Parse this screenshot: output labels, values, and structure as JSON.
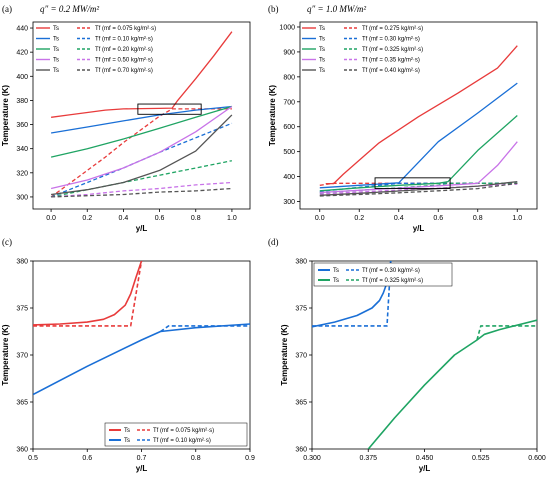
{
  "chart_data": [
    {
      "type": "line",
      "panel_label": "(a)",
      "title": "q″ = 0.2 MW/m²",
      "xlabel": "y/L",
      "ylabel": "Temperature (K)",
      "xlim": [
        -0.1,
        1.1
      ],
      "ylim": [
        290,
        445
      ],
      "xticks": [
        0.0,
        0.2,
        0.4,
        0.6,
        0.8,
        1.0
      ],
      "xtick_labels": [
        "0.0",
        "0.2",
        "0.4",
        "0.6",
        "0.8",
        "1.0"
      ],
      "yticks": [
        300,
        320,
        340,
        360,
        380,
        400,
        420,
        440
      ],
      "ytick_labels": [
        "300",
        "320",
        "340",
        "360",
        "380",
        "400",
        "420",
        "440"
      ],
      "legend_position": "top-left",
      "series": [
        {
          "name": "Ts",
          "style": "solid",
          "color": "#e83b3b",
          "x": [
            0,
            0.1,
            0.2,
            0.3,
            0.4,
            0.5,
            0.6,
            0.67,
            0.7,
            0.8,
            0.9,
            1.0
          ],
          "y": [
            366,
            368,
            370,
            372,
            373,
            373.2,
            373.4,
            373.6,
            380,
            398,
            417,
            437
          ]
        },
        {
          "name": "Tf (mf = 0.075 kg/m²·s)",
          "style": "dashed",
          "color": "#e83b3b",
          "x": [
            0,
            0.1,
            0.2,
            0.3,
            0.4,
            0.5,
            0.6,
            0.67,
            1.0
          ],
          "y": [
            300,
            311,
            322,
            333,
            345,
            356,
            367,
            373,
            373
          ]
        },
        {
          "name": "Ts",
          "style": "solid",
          "color": "#1a6fd6",
          "x": [
            0,
            0.2,
            0.4,
            0.6,
            0.8,
            1.0
          ],
          "y": [
            353,
            358,
            363,
            368,
            372,
            375
          ]
        },
        {
          "name": "Tf (mf = 0.10 kg/m²·s)",
          "style": "dashed",
          "color": "#1a6fd6",
          "x": [
            0,
            0.2,
            0.4,
            0.6,
            0.8,
            1.0
          ],
          "y": [
            300,
            312,
            324,
            337,
            349,
            361
          ]
        },
        {
          "name": "Ts",
          "style": "solid",
          "color": "#1fa463",
          "x": [
            0,
            0.2,
            0.4,
            0.6,
            0.8,
            1.0
          ],
          "y": [
            333,
            340,
            348,
            357,
            366,
            375
          ]
        },
        {
          "name": "Tf (mf = 0.20 kg/m²·s)",
          "style": "dashed",
          "color": "#1fa463",
          "x": [
            0,
            0.2,
            0.4,
            0.6,
            0.8,
            1.0
          ],
          "y": [
            300,
            306,
            312,
            318,
            324,
            330
          ]
        },
        {
          "name": "Ts",
          "style": "solid",
          "color": "#c873e8",
          "x": [
            0,
            0.2,
            0.4,
            0.6,
            0.8,
            1.0
          ],
          "y": [
            307,
            314,
            324,
            337,
            354,
            375
          ]
        },
        {
          "name": "Tf (mf = 0.50 kg/m²·s)",
          "style": "dashed",
          "color": "#c873e8",
          "x": [
            0,
            0.2,
            0.4,
            0.6,
            0.8,
            1.0
          ],
          "y": [
            300,
            302,
            305,
            307,
            310,
            312
          ]
        },
        {
          "name": "Ts",
          "style": "solid",
          "color": "#555555",
          "x": [
            0,
            0.2,
            0.4,
            0.6,
            0.8,
            1.0
          ],
          "y": [
            302,
            306,
            312,
            322,
            338,
            368
          ]
        },
        {
          "name": "Tf (mf = 0.70 kg/m²·s)",
          "style": "dashed",
          "color": "#555555",
          "x": [
            0,
            0.2,
            0.4,
            0.6,
            0.8,
            1.0
          ],
          "y": [
            300,
            301,
            302,
            304,
            305,
            307
          ]
        }
      ],
      "zoom_box": {
        "x": [
          0.48,
          0.83
        ],
        "y": [
          368.5,
          377
        ]
      }
    },
    {
      "type": "line",
      "panel_label": "(b)",
      "title": "q″ = 1.0 MW/m²",
      "xlabel": "y/L",
      "ylabel": "Temperature (K)",
      "xlim": [
        -0.1,
        1.1
      ],
      "ylim": [
        270,
        1020
      ],
      "xticks": [
        0.0,
        0.2,
        0.4,
        0.6,
        0.8,
        1.0
      ],
      "xtick_labels": [
        "0.0",
        "0.2",
        "0.4",
        "0.6",
        "0.8",
        "1.0"
      ],
      "yticks": [
        300,
        400,
        500,
        600,
        700,
        800,
        900,
        1000
      ],
      "ytick_labels": [
        "300",
        "400",
        "500",
        "600",
        "700",
        "800",
        "900",
        "1000"
      ],
      "legend_position": "top-left",
      "series": [
        {
          "name": "Ts",
          "style": "solid",
          "color": "#e83b3b",
          "x": [
            0.03,
            0.07,
            0.12,
            0.3,
            0.5,
            0.7,
            0.9,
            1.0
          ],
          "y": [
            372,
            372,
            410,
            535,
            640,
            735,
            835,
            925
          ]
        },
        {
          "name": "Tf (mf = 0.275 kg/m²·s)",
          "style": "dashed",
          "color": "#e83b3b",
          "x": [
            0.0,
            0.07,
            1.0
          ],
          "y": [
            365,
            373,
            373
          ]
        },
        {
          "name": "Ts",
          "style": "solid",
          "color": "#1a6fd6",
          "x": [
            0,
            0.2,
            0.4,
            0.6,
            0.8,
            1.0
          ],
          "y": [
            355,
            365,
            375,
            540,
            655,
            775
          ]
        },
        {
          "name": "Tf (mf = 0.30 kg/m²·s)",
          "style": "dashed",
          "color": "#1a6fd6",
          "x": [
            0,
            0.2,
            0.39,
            0.4,
            1.0
          ],
          "y": [
            340,
            357,
            372,
            373,
            373
          ]
        },
        {
          "name": "Ts",
          "style": "solid",
          "color": "#1fa463",
          "x": [
            0,
            0.2,
            0.4,
            0.6,
            0.65,
            0.8,
            1.0
          ],
          "y": [
            343,
            355,
            365,
            373,
            380,
            505,
            645
          ]
        },
        {
          "name": "Tf (mf = 0.325 kg/m²·s)",
          "style": "dashed",
          "color": "#1fa463",
          "x": [
            0,
            0.2,
            0.4,
            0.6,
            0.65,
            1.0
          ],
          "y": [
            335,
            345,
            355,
            366,
            373,
            373
          ]
        },
        {
          "name": "Ts",
          "style": "solid",
          "color": "#c873e8",
          "x": [
            0,
            0.2,
            0.4,
            0.6,
            0.8,
            0.9,
            1.0
          ],
          "y": [
            336,
            345,
            354,
            363,
            373,
            445,
            540
          ]
        },
        {
          "name": "Tf (mf = 0.35 kg/m²·s)",
          "style": "dashed",
          "color": "#c873e8",
          "x": [
            0,
            0.2,
            0.4,
            0.6,
            0.8,
            1.0
          ],
          "y": [
            330,
            338,
            346,
            354,
            362,
            370
          ]
        },
        {
          "name": "Ts",
          "style": "solid",
          "color": "#555555",
          "x": [
            0,
            0.2,
            0.4,
            0.6,
            0.8,
            1.0
          ],
          "y": [
            325,
            333,
            342,
            352,
            362,
            380
          ]
        },
        {
          "name": "Tf (mf = 0.40 kg/m²·s)",
          "style": "dashed",
          "color": "#555555",
          "x": [
            0,
            0.2,
            0.4,
            0.6,
            0.8,
            1.0
          ],
          "y": [
            322,
            328,
            335,
            343,
            352,
            373
          ]
        }
      ],
      "zoom_box": {
        "x": [
          0.28,
          0.66
        ],
        "y": [
          352,
          395
        ]
      }
    },
    {
      "type": "line",
      "panel_label": "(c)",
      "title": "",
      "xlabel": "y/L",
      "ylabel": "Temperature (K)",
      "xlim": [
        0.5,
        0.9
      ],
      "ylim": [
        360,
        380
      ],
      "xticks": [
        0.5,
        0.6,
        0.7,
        0.8,
        0.9
      ],
      "xtick_labels": [
        "0.5",
        "0.6",
        "0.7",
        "0.8",
        "0.9"
      ],
      "yticks": [
        360,
        365,
        370,
        375,
        380
      ],
      "ytick_labels": [
        "360",
        "365",
        "370",
        "375",
        "380"
      ],
      "legend_position": "bottom-right",
      "series": [
        {
          "name": "Ts",
          "style": "solid",
          "color": "#e83b3b",
          "x": [
            0.5,
            0.55,
            0.6,
            0.63,
            0.65,
            0.67,
            0.68,
            0.69,
            0.7
          ],
          "y": [
            373.2,
            373.3,
            373.5,
            373.8,
            374.3,
            375.3,
            376.5,
            378.3,
            380
          ]
        },
        {
          "name": "Tf (mf = 0.075 kg/m²·s)",
          "style": "dashed",
          "color": "#e83b3b",
          "x": [
            0.5,
            0.68,
            0.7
          ],
          "y": [
            373.1,
            373.1,
            380
          ]
        },
        {
          "name": "Ts",
          "style": "solid",
          "color": "#1a6fd6",
          "x": [
            0.5,
            0.6,
            0.7,
            0.735,
            0.8,
            0.9
          ],
          "y": [
            365.8,
            368.8,
            371.6,
            372.5,
            372.9,
            373.3
          ]
        },
        {
          "name": "Tf (mf = 0.10 kg/m²·s)",
          "style": "dashed",
          "color": "#1a6fd6",
          "x": [
            0.735,
            0.75,
            0.9
          ],
          "y": [
            372.5,
            373.1,
            373.1
          ]
        }
      ]
    },
    {
      "type": "line",
      "panel_label": "(d)",
      "title": "",
      "xlabel": "y/L",
      "ylabel": "Temperature (K)",
      "xlim": [
        0.3,
        0.6
      ],
      "ylim": [
        360,
        380
      ],
      "xticks": [
        0.3,
        0.375,
        0.45,
        0.525,
        0.6
      ],
      "xtick_labels": [
        "0.300",
        "0.375",
        "0.450",
        "0.525",
        "0.600"
      ],
      "yticks": [
        360,
        365,
        370,
        375,
        380
      ],
      "ytick_labels": [
        "360",
        "365",
        "370",
        "375",
        "380"
      ],
      "legend_position": "top-left",
      "series": [
        {
          "name": "Ts",
          "style": "solid",
          "color": "#1a6fd6",
          "x": [
            0.3,
            0.33,
            0.36,
            0.38,
            0.39,
            0.395,
            0.4,
            0.405
          ],
          "y": [
            373,
            373.5,
            374.2,
            375,
            375.8,
            376.6,
            377.7,
            380
          ]
        },
        {
          "name": "Tf (mf = 0.30 kg/m²·s)",
          "style": "dashed",
          "color": "#1a6fd6",
          "x": [
            0.3,
            0.4,
            0.405
          ],
          "y": [
            373.1,
            373.1,
            380
          ]
        },
        {
          "name": "Ts",
          "style": "solid",
          "color": "#1fa463",
          "x": [
            0.375,
            0.41,
            0.45,
            0.49,
            0.52,
            0.53,
            0.55,
            0.6
          ],
          "y": [
            360,
            363.3,
            366.8,
            370,
            371.6,
            372.2,
            372.7,
            373.7
          ]
        },
        {
          "name": "Tf (mf = 0.325 kg/m²·s)",
          "style": "dashed",
          "color": "#1fa463",
          "x": [
            0.52,
            0.525,
            0.6
          ],
          "y": [
            371.6,
            373.1,
            373.1
          ]
        }
      ]
    }
  ]
}
